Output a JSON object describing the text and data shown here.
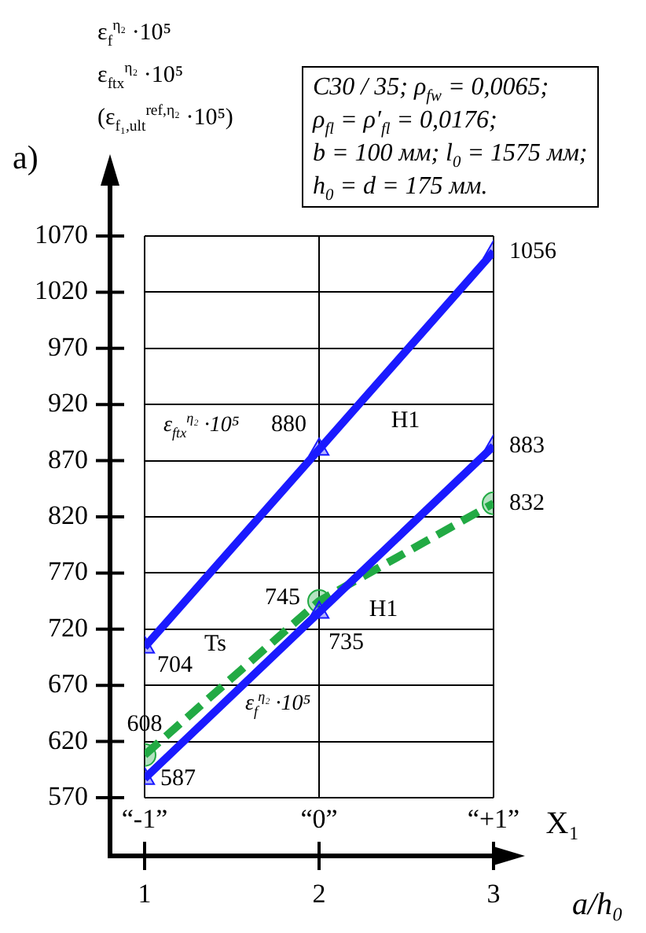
{
  "chart_data": {
    "type": "line",
    "ylabel": "ε$_{f}$$^{η₂}$ ·10⁵\nε$_{ftx}$$^{η₂}$ ·10⁵\n(ε$_{f₁,ult}$$^{ref,η₂}$ ·10⁵)",
    "xlabel": "a/h₀",
    "x": [
      1,
      2,
      3
    ],
    "xlim": [
      1,
      3
    ],
    "xticks": [
      1,
      2,
      3
    ],
    "ylim": [
      570,
      1070
    ],
    "yticks": [
      570,
      620,
      670,
      720,
      770,
      820,
      870,
      920,
      970,
      1020,
      1070
    ],
    "series": [
      {
        "name": "ε$_{ftx}$$^{η₂}$ ·10⁵",
        "color": "#1a1aff",
        "values": [
          704,
          880,
          1056
        ],
        "marker": "triangle",
        "line_style": "solid"
      },
      {
        "name": "ε$_{f}$$^{η₂}$ ·10⁵",
        "color": "#1a1aff",
        "values": [
          587,
          735,
          883
        ],
        "marker": "triangle",
        "line_style": "solid"
      },
      {
        "color": "#22aa44",
        "values": [
          608,
          745,
          832
        ],
        "marker": "circle",
        "line_style": "dashed"
      }
    ],
    "data_labels": true,
    "grid": true,
    "legend": false,
    "annotations": [
      "C30 / 35; ρ$_{fw}$ = 0,0065;\nρ$_{fl}$ = ρ′$_{fl}$ = 0,0176;\nb = 100 мм; l$_{0}$ = 1575 мм;\nh$_{0}$ = d = 175 мм.",
      "a)",
      "H1",
      "H1",
      "Ts",
      "“-1”",
      "“0”",
      "“+1”",
      "X₁"
    ]
  }
}
